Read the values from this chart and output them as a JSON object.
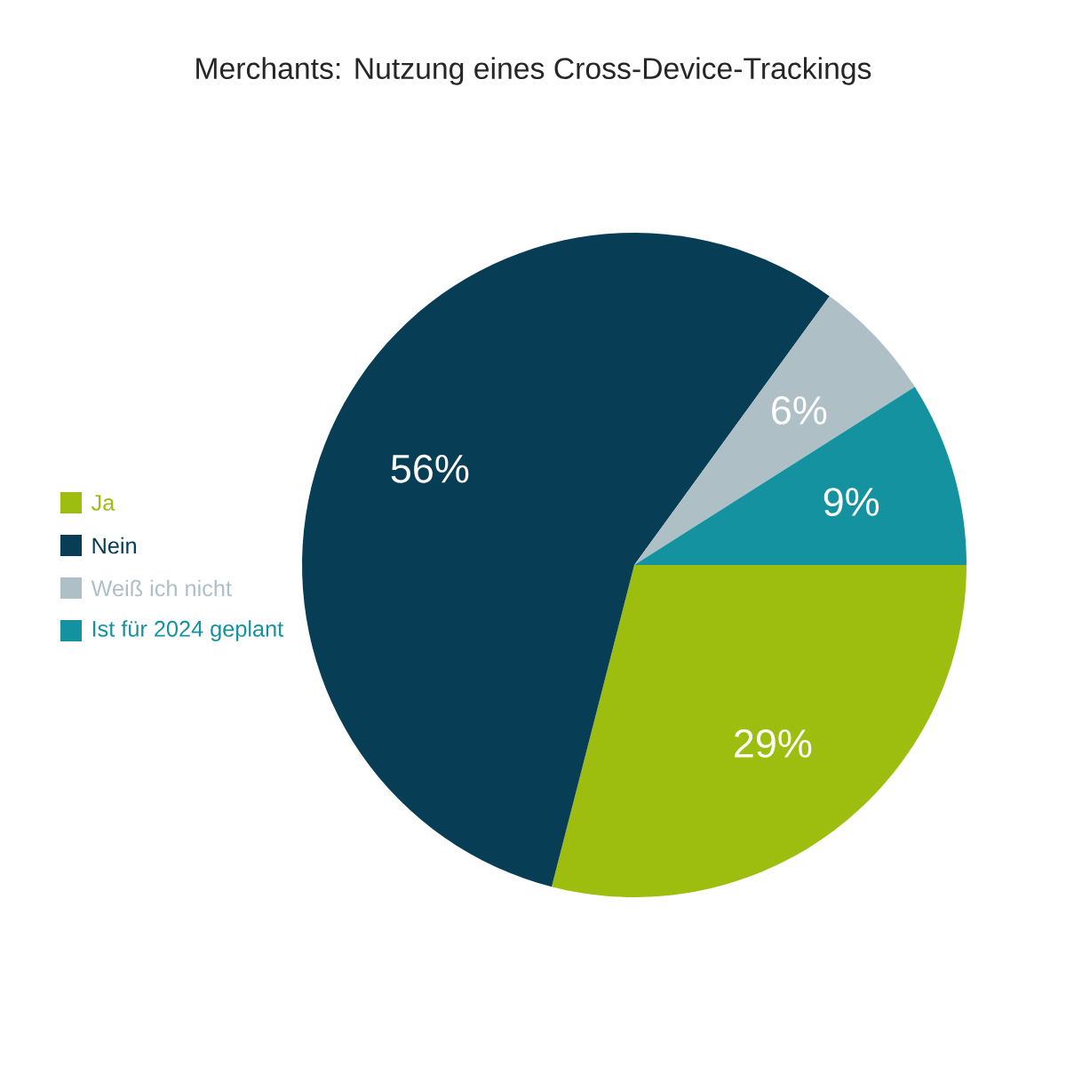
{
  "chart_data": {
    "type": "pie",
    "title": "Merchants: Nutzung eines Cross-Device-Trackings",
    "categories": [
      "Ja",
      "Nein",
      "Weiß ich nicht",
      "Ist für 2024 geplant"
    ],
    "values": [
      29,
      56,
      6,
      9
    ],
    "colors": [
      "#9dbd0f",
      "#083d56",
      "#aebfc6",
      "#15929f"
    ],
    "value_labels": [
      "29%",
      "56%",
      "6%",
      "9%"
    ],
    "legend": "left"
  }
}
